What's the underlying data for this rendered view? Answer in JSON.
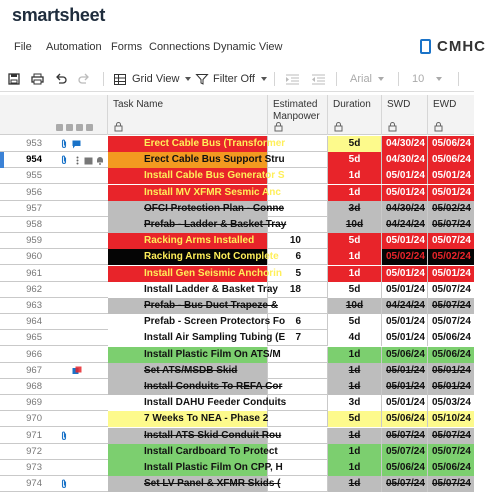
{
  "brand": "smartsheet",
  "menu": [
    "File",
    "Automation",
    "Forms",
    "Connections",
    "Dynamic View"
  ],
  "org_name": "CMHC",
  "toolbar": {
    "grid_view_label": "Grid View",
    "filter_label": "Filter Off",
    "font_name": "Arial",
    "font_size": "10"
  },
  "columns": {
    "task": "Task Name",
    "manpower_line1": "Estimated",
    "manpower_line2": "Manpower",
    "duration": "Duration",
    "swd": "SWD",
    "ewd": "EWD"
  },
  "colors": {
    "red": "#e8242a",
    "orange": "#f39a20",
    "gray": "#bdbdbd",
    "black": "#050505",
    "green": "#7ccf6f",
    "yellow": "#fdfa8c",
    "white": "#ffffff",
    "accent": "#3b82d6"
  },
  "rows": [
    {
      "num": "953",
      "task": "Erect Cable Bus (Transformer",
      "manpower": "",
      "duration": "5d",
      "swd": "04/30/24",
      "ewd": "05/06/24",
      "task_bg": "red",
      "dur_bg": "yellow",
      "swd_bg": "red",
      "ewd_bg": "red",
      "strike": false,
      "icons": [
        "attach",
        "comment"
      ]
    },
    {
      "num": "954",
      "task": "Erect Cable Bus Support Stru",
      "manpower": "",
      "duration": "5d",
      "swd": "04/30/24",
      "ewd": "05/06/24",
      "task_bg": "orange",
      "dur_bg": "red",
      "swd_bg": "red",
      "ewd_bg": "red",
      "strike": false,
      "selected": true,
      "icons": [
        "attach",
        "more",
        "proof",
        "bell"
      ]
    },
    {
      "num": "955",
      "task": "Install Cable Bus Generator S",
      "manpower": "",
      "duration": "1d",
      "swd": "05/01/24",
      "ewd": "05/01/24",
      "task_bg": "red",
      "dur_bg": "red",
      "swd_bg": "red",
      "ewd_bg": "red",
      "strike": false,
      "icons": []
    },
    {
      "num": "956",
      "task": "Install MV XFMR Sesmic Anc",
      "manpower": "",
      "duration": "1d",
      "swd": "05/01/24",
      "ewd": "05/01/24",
      "task_bg": "red",
      "dur_bg": "red",
      "swd_bg": "red",
      "ewd_bg": "red",
      "strike": false,
      "icons": []
    },
    {
      "num": "957",
      "task": "OFCI Protection Plan - Conne",
      "manpower": "",
      "duration": "3d",
      "swd": "04/30/24",
      "ewd": "05/02/24",
      "task_bg": "gray",
      "dur_bg": "gray",
      "swd_bg": "gray",
      "ewd_bg": "gray",
      "strike": true,
      "icons": []
    },
    {
      "num": "958",
      "task": "Prefab - Ladder & Basket Tray",
      "manpower": "",
      "duration": "10d",
      "swd": "04/24/24",
      "ewd": "05/07/24",
      "task_bg": "gray",
      "dur_bg": "gray",
      "swd_bg": "gray",
      "ewd_bg": "gray",
      "strike": true,
      "icons": []
    },
    {
      "num": "959",
      "task": "Racking Arms Installed",
      "manpower": "10",
      "duration": "5d",
      "swd": "05/01/24",
      "ewd": "05/07/24",
      "task_bg": "red",
      "dur_bg": "red",
      "swd_bg": "red",
      "ewd_bg": "red",
      "strike": false,
      "icons": []
    },
    {
      "num": "960",
      "task": "Racking Arms Not Complete",
      "manpower": "6",
      "duration": "1d",
      "swd": "05/02/24",
      "ewd": "05/02/24",
      "task_bg": "black",
      "dur_bg": "red",
      "swd_bg": "black",
      "ewd_bg": "black",
      "strike": false,
      "icons": []
    },
    {
      "num": "961",
      "task": "Install Gen Seismic Anchorin",
      "manpower": "5",
      "duration": "1d",
      "swd": "05/01/24",
      "ewd": "05/01/24",
      "task_bg": "red",
      "dur_bg": "red",
      "swd_bg": "red",
      "ewd_bg": "red",
      "strike": false,
      "icons": []
    },
    {
      "num": "962",
      "task": "Install Ladder & Basket Tray",
      "manpower": "18",
      "duration": "5d",
      "swd": "05/01/24",
      "ewd": "05/07/24",
      "task_bg": "white",
      "dur_bg": "white",
      "swd_bg": "white",
      "ewd_bg": "white",
      "strike": false,
      "icons": []
    },
    {
      "num": "963",
      "task": "Prefab - Bus Duct Trapeze &",
      "manpower": "",
      "duration": "10d",
      "swd": "04/24/24",
      "ewd": "05/07/24",
      "task_bg": "gray",
      "dur_bg": "gray",
      "swd_bg": "gray",
      "ewd_bg": "gray",
      "strike": true,
      "icons": []
    },
    {
      "num": "964",
      "task": "Prefab - Screen Protectors Fo",
      "manpower": "6",
      "duration": "5d",
      "swd": "05/01/24",
      "ewd": "05/07/24",
      "task_bg": "white",
      "dur_bg": "white",
      "swd_bg": "white",
      "ewd_bg": "white",
      "strike": false,
      "icons": []
    },
    {
      "num": "965",
      "task": "Install Air Sampling Tubing (E",
      "manpower": "7",
      "duration": "4d",
      "swd": "05/01/24",
      "ewd": "05/06/24",
      "task_bg": "white",
      "dur_bg": "white",
      "swd_bg": "white",
      "ewd_bg": "white",
      "strike": false,
      "icons": []
    },
    {
      "num": "966",
      "task": "Install Plastic Film On ATS/M",
      "manpower": "",
      "duration": "1d",
      "swd": "05/06/24",
      "ewd": "05/06/24",
      "task_bg": "green",
      "dur_bg": "green",
      "swd_bg": "green",
      "ewd_bg": "green",
      "strike": false,
      "icons": []
    },
    {
      "num": "967",
      "task": "Set ATS/MSDB Skid",
      "manpower": "",
      "duration": "1d",
      "swd": "05/01/24",
      "ewd": "05/01/24",
      "task_bg": "gray",
      "dur_bg": "gray",
      "swd_bg": "gray",
      "ewd_bg": "gray",
      "strike": true,
      "icons": [
        "proof-color"
      ]
    },
    {
      "num": "968",
      "task": "Install Conduits To REFA Cor",
      "manpower": "",
      "duration": "1d",
      "swd": "05/01/24",
      "ewd": "05/01/24",
      "task_bg": "gray",
      "dur_bg": "gray",
      "swd_bg": "gray",
      "ewd_bg": "gray",
      "strike": true,
      "icons": []
    },
    {
      "num": "969",
      "task": "Install DAHU Feeder Conduits",
      "manpower": "",
      "duration": "3d",
      "swd": "05/01/24",
      "ewd": "05/03/24",
      "task_bg": "white",
      "dur_bg": "white",
      "swd_bg": "white",
      "ewd_bg": "white",
      "strike": false,
      "icons": []
    },
    {
      "num": "970",
      "task": "7 Weeks To NEA - Phase 2",
      "manpower": "",
      "duration": "5d",
      "swd": "05/06/24",
      "ewd": "05/10/24",
      "task_bg": "yellow",
      "dur_bg": "yellow",
      "swd_bg": "yellow",
      "ewd_bg": "yellow",
      "strike": false,
      "icons": []
    },
    {
      "num": "971",
      "task": "Install ATS Skid Conduit Rou",
      "manpower": "",
      "duration": "1d",
      "swd": "05/07/24",
      "ewd": "05/07/24",
      "task_bg": "gray",
      "dur_bg": "gray",
      "swd_bg": "gray",
      "ewd_bg": "gray",
      "strike": true,
      "icons": [
        "attach"
      ]
    },
    {
      "num": "972",
      "task": "Install Cardboard To Protect",
      "manpower": "",
      "duration": "1d",
      "swd": "05/07/24",
      "ewd": "05/07/24",
      "task_bg": "green",
      "dur_bg": "green",
      "swd_bg": "green",
      "ewd_bg": "green",
      "strike": false,
      "icons": []
    },
    {
      "num": "973",
      "task": "Install Plastic Film On CPP, H",
      "manpower": "",
      "duration": "1d",
      "swd": "05/06/24",
      "ewd": "05/06/24",
      "task_bg": "green",
      "dur_bg": "green",
      "swd_bg": "green",
      "ewd_bg": "green",
      "strike": false,
      "icons": []
    },
    {
      "num": "974",
      "task": "Set LV Panel & XFMR Skids (",
      "manpower": "",
      "duration": "1d",
      "swd": "05/07/24",
      "ewd": "05/07/24",
      "task_bg": "gray",
      "dur_bg": "gray",
      "swd_bg": "gray",
      "ewd_bg": "gray",
      "strike": true,
      "icons": [
        "attach"
      ]
    }
  ]
}
